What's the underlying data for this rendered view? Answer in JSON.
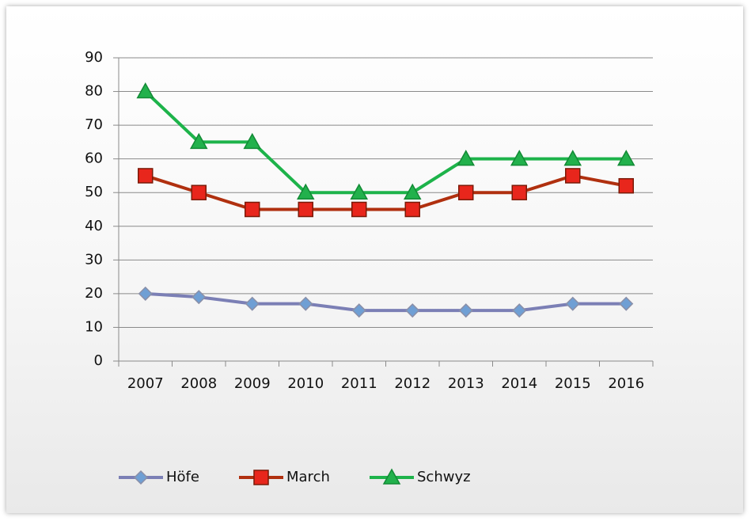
{
  "chart_data": {
    "type": "line",
    "categories": [
      "2007",
      "2008",
      "2009",
      "2010",
      "2011",
      "2012",
      "2013",
      "2014",
      "2015",
      "2016"
    ],
    "series": [
      {
        "name": "Höfe",
        "color": "#7b7fb5",
        "marker": "diamond",
        "marker_color": "#6f9fd4",
        "values": [
          20,
          19,
          17,
          17,
          15,
          15,
          15,
          15,
          17,
          17
        ]
      },
      {
        "name": "March",
        "color": "#b0300f",
        "marker": "square",
        "marker_color": "#e8261c",
        "values": [
          55,
          50,
          45,
          45,
          45,
          45,
          50,
          50,
          55,
          52
        ]
      },
      {
        "name": "Schwyz",
        "color": "#1db34a",
        "marker": "triangle",
        "marker_color": "#22b14c",
        "values": [
          80,
          65,
          65,
          50,
          50,
          50,
          60,
          60,
          60,
          60
        ]
      }
    ],
    "ylim": [
      0,
      90
    ],
    "yticks": [
      0,
      10,
      20,
      30,
      40,
      50,
      60,
      70,
      80,
      90
    ],
    "grid": true,
    "legend": "bottom"
  }
}
